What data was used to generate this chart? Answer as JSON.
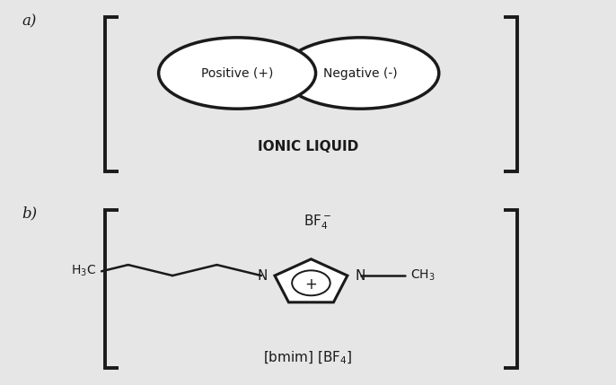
{
  "bg_color": "#e6e6e6",
  "line_color": "#1a1a1a",
  "text_color": "#1a1a1a",
  "label_a": "a)",
  "label_b": "b)",
  "ionic_liquid_text": "IONIC LIQUID",
  "positive_text": "Positive (+)",
  "negative_text": "Negative (-)",
  "figsize": [
    6.86,
    4.29
  ],
  "dpi": 100
}
